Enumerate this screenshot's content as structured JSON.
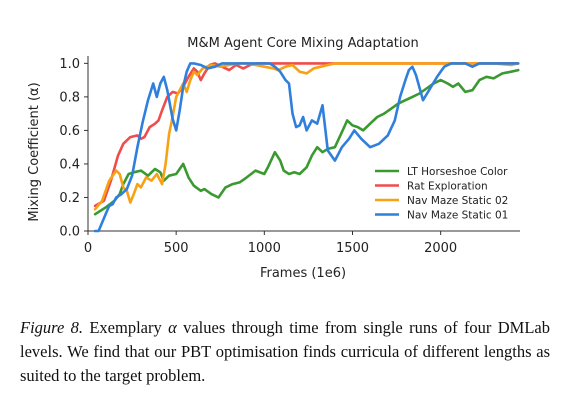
{
  "chart_data": {
    "type": "line",
    "title": "M&M Agent Core Mixing Adaptation",
    "xlabel": "Frames (1e6)",
    "ylabel": "Mixing Coefficient (α)",
    "xlim": [
      0,
      2450
    ],
    "ylim": [
      0,
      1.02
    ],
    "xticks": [
      0,
      500,
      1000,
      1500,
      2000
    ],
    "xtick_labels": [
      "0",
      "500",
      "1000",
      "1500",
      "2000"
    ],
    "yticks": [
      0.0,
      0.2,
      0.4,
      0.6,
      0.8,
      1.0
    ],
    "ytick_labels": [
      "0.0",
      "0.2",
      "0.4",
      "0.6",
      "0.8",
      "1.0"
    ],
    "grid": false,
    "legend_position": "lower-right",
    "series": [
      {
        "name": "LT Horseshoe Color",
        "color": "#3a9a31",
        "x": [
          40,
          100,
          150,
          180,
          200,
          230,
          260,
          300,
          340,
          380,
          410,
          430,
          460,
          500,
          540,
          570,
          600,
          640,
          660,
          700,
          740,
          780,
          820,
          860,
          900,
          950,
          1000,
          1020,
          1060,
          1090,
          1110,
          1140,
          1170,
          1200,
          1240,
          1270,
          1300,
          1330,
          1360,
          1400,
          1440,
          1470,
          1500,
          1530,
          1560,
          1600,
          1640,
          1680,
          1720,
          1760,
          1800,
          1840,
          1880,
          1920,
          1960,
          2000,
          2040,
          2070,
          2100,
          2140,
          2180,
          2220,
          2260,
          2300,
          2350,
          2400,
          2440
        ],
        "y": [
          0.1,
          0.14,
          0.18,
          0.22,
          0.28,
          0.34,
          0.35,
          0.36,
          0.33,
          0.37,
          0.35,
          0.3,
          0.33,
          0.34,
          0.4,
          0.32,
          0.27,
          0.24,
          0.25,
          0.22,
          0.2,
          0.26,
          0.28,
          0.29,
          0.32,
          0.36,
          0.34,
          0.38,
          0.47,
          0.42,
          0.36,
          0.34,
          0.35,
          0.34,
          0.38,
          0.45,
          0.5,
          0.47,
          0.49,
          0.5,
          0.59,
          0.66,
          0.63,
          0.62,
          0.6,
          0.64,
          0.68,
          0.7,
          0.73,
          0.76,
          0.78,
          0.8,
          0.82,
          0.85,
          0.88,
          0.9,
          0.88,
          0.86,
          0.88,
          0.83,
          0.84,
          0.9,
          0.92,
          0.91,
          0.94,
          0.95,
          0.96
        ]
      },
      {
        "name": "Rat Exploration",
        "color": "#f04c4c",
        "x": [
          40,
          90,
          130,
          170,
          200,
          240,
          280,
          300,
          320,
          350,
          380,
          400,
          420,
          450,
          480,
          510,
          540,
          570,
          600,
          620,
          640,
          660,
          690,
          720,
          760,
          800,
          840,
          880,
          920,
          960,
          1000,
          1050,
          1100,
          1150,
          1200,
          1250,
          1300,
          1350,
          1400,
          1450,
          1500,
          1550,
          1600,
          1650,
          1700,
          1750,
          1800,
          1850,
          1900,
          1950,
          2000,
          2100,
          2200,
          2300,
          2400,
          2440
        ],
        "y": [
          0.15,
          0.18,
          0.3,
          0.45,
          0.52,
          0.56,
          0.57,
          0.55,
          0.56,
          0.62,
          0.64,
          0.66,
          0.72,
          0.8,
          0.83,
          0.82,
          0.86,
          0.92,
          0.97,
          0.95,
          0.9,
          0.94,
          0.99,
          1.0,
          0.98,
          0.96,
          0.99,
          0.97,
          0.99,
          1.0,
          1.0,
          1.0,
          1.0,
          1.0,
          1.0,
          1.0,
          1.0,
          1.0,
          1.0,
          1.0,
          1.0,
          1.0,
          1.0,
          1.0,
          1.0,
          1.0,
          1.0,
          1.0,
          1.0,
          1.0,
          1.0,
          1.0,
          1.0,
          1.0,
          1.0,
          1.0
        ]
      },
      {
        "name": "Nav Maze Static 02",
        "color": "#f7a115",
        "x": [
          40,
          80,
          120,
          160,
          180,
          200,
          220,
          240,
          260,
          280,
          300,
          330,
          360,
          390,
          420,
          440,
          460,
          480,
          500,
          520,
          540,
          560,
          580,
          600,
          620,
          650,
          700,
          750,
          800,
          850,
          900,
          950,
          1000,
          1050,
          1080,
          1120,
          1160,
          1200,
          1240,
          1280,
          1320,
          1360,
          1400,
          1450,
          1500,
          1550,
          1600,
          1700,
          1800,
          1900,
          2000,
          2100,
          2200,
          2300,
          2400,
          2440
        ],
        "y": [
          0.13,
          0.18,
          0.3,
          0.36,
          0.34,
          0.26,
          0.24,
          0.17,
          0.22,
          0.28,
          0.26,
          0.32,
          0.3,
          0.34,
          0.28,
          0.4,
          0.58,
          0.68,
          0.8,
          0.84,
          0.88,
          0.83,
          0.9,
          0.95,
          0.93,
          0.97,
          0.99,
          0.98,
          0.99,
          1.0,
          1.0,
          0.99,
          0.98,
          0.97,
          0.96,
          0.98,
          0.99,
          0.95,
          0.94,
          0.97,
          0.98,
          0.99,
          1.0,
          1.0,
          1.0,
          1.0,
          1.0,
          1.0,
          1.0,
          1.0,
          1.0,
          1.0,
          1.0,
          1.0,
          0.99,
          1.0
        ]
      },
      {
        "name": "Nav Maze Static 01",
        "color": "#2f7fdd",
        "x": [
          40,
          60,
          80,
          100,
          120,
          140,
          160,
          190,
          220,
          250,
          280,
          310,
          340,
          370,
          390,
          410,
          430,
          450,
          480,
          500,
          520,
          540,
          560,
          580,
          600,
          640,
          680,
          720,
          760,
          800,
          850,
          900,
          950,
          1000,
          1030,
          1060,
          1090,
          1120,
          1140,
          1160,
          1180,
          1200,
          1220,
          1240,
          1270,
          1300,
          1330,
          1360,
          1400,
          1440,
          1480,
          1510,
          1550,
          1600,
          1650,
          1700,
          1740,
          1770,
          1800,
          1820,
          1840,
          1860,
          1900,
          1940,
          1980,
          2020,
          2060,
          2100,
          2140,
          2180,
          2220,
          2260,
          2300,
          2340,
          2380,
          2420,
          2440
        ],
        "y": [
          0.0,
          0.0,
          0.05,
          0.1,
          0.15,
          0.16,
          0.2,
          0.22,
          0.25,
          0.33,
          0.5,
          0.65,
          0.78,
          0.88,
          0.8,
          0.88,
          0.92,
          0.84,
          0.67,
          0.6,
          0.72,
          0.86,
          0.95,
          1.0,
          1.0,
          0.99,
          0.97,
          0.98,
          1.0,
          1.0,
          1.0,
          1.0,
          1.0,
          1.0,
          1.0,
          0.98,
          0.95,
          0.9,
          0.88,
          0.7,
          0.62,
          0.63,
          0.68,
          0.6,
          0.66,
          0.64,
          0.75,
          0.48,
          0.42,
          0.5,
          0.55,
          0.6,
          0.55,
          0.5,
          0.52,
          0.57,
          0.66,
          0.8,
          0.9,
          0.96,
          0.98,
          0.93,
          0.78,
          0.85,
          0.92,
          0.98,
          1.0,
          1.0,
          1.0,
          0.98,
          1.0,
          1.0,
          1.0,
          1.0,
          1.0,
          1.0,
          1.0
        ]
      }
    ]
  },
  "caption": {
    "label": "Figure 8.",
    "text_before_symbol": " Exemplary ",
    "symbol": "α",
    "text_after_symbol": " values through time from single runs of four DMLab levels. We find that our PBT optimisation finds cur­ricula of different lengths as suited to the target problem."
  }
}
